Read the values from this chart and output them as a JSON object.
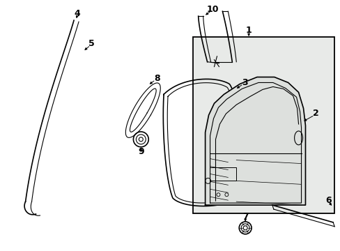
{
  "background_color": "#ffffff",
  "line_color": "#000000",
  "label_color": "#000000",
  "figsize": [
    4.89,
    3.6
  ],
  "dpi": 100,
  "box_facecolor": "#e8eae8",
  "door_facecolor": "#dde0dd"
}
